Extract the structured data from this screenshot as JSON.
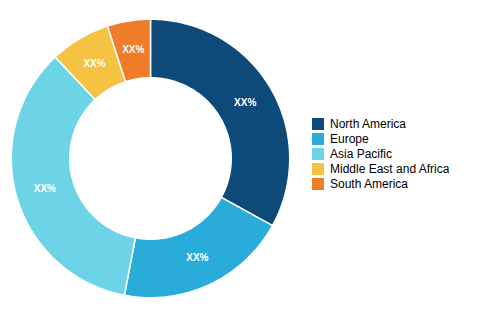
{
  "chart_data": {
    "type": "donut",
    "categories": [
      "North America",
      "Europe",
      "Asia Pacific",
      "Middle East and Africa",
      "South America"
    ],
    "values": [
      33,
      20,
      35,
      7,
      5
    ],
    "colors": [
      "#0d4a7a",
      "#29acd9",
      "#6dd4e8",
      "#f5c242",
      "#f07c2a"
    ],
    "data_labels": true,
    "value_labels": [
      "XX%",
      "XX%",
      "XX%",
      "XX%",
      "XX%"
    ],
    "legend": "right"
  }
}
